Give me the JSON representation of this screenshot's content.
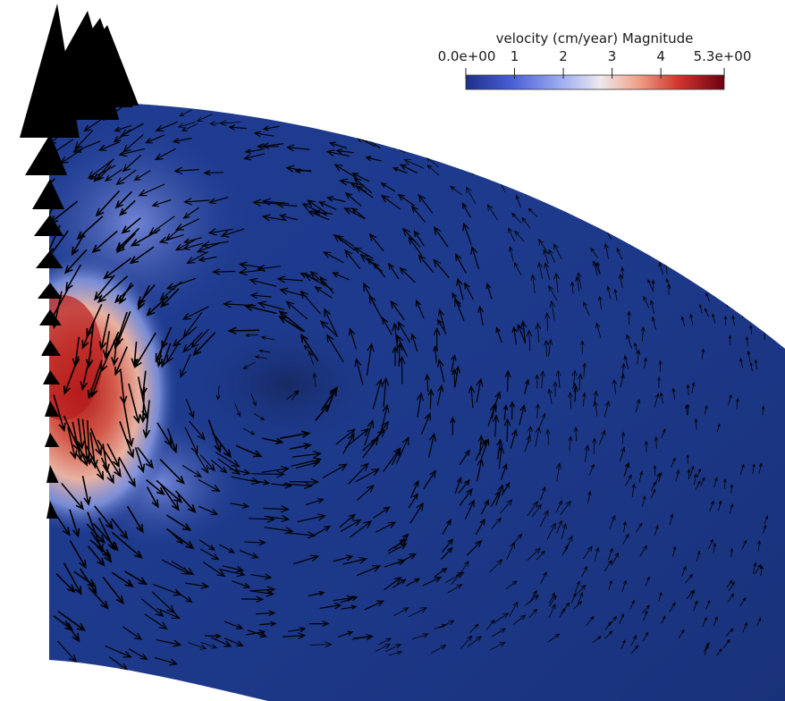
{
  "colorbar": {
    "title": "velocity (cm/year) Magnitude",
    "min": 0.0,
    "max": 5.3,
    "tick_labels": [
      "0.0e+00",
      "1",
      "2",
      "3",
      "4",
      "5.3e+00"
    ],
    "tick_values": [
      0.0,
      1,
      2,
      3,
      4,
      5.3
    ],
    "colormap": [
      "#3b4cc0",
      "#7b9ff9",
      "#c0d4f5",
      "#f2cbb7",
      "#ee8468",
      "#b40426",
      "#67000d"
    ]
  },
  "field": {
    "background_color": "#1f3c91",
    "edge_color": "#172a63",
    "glyph_color": "#000000"
  }
}
